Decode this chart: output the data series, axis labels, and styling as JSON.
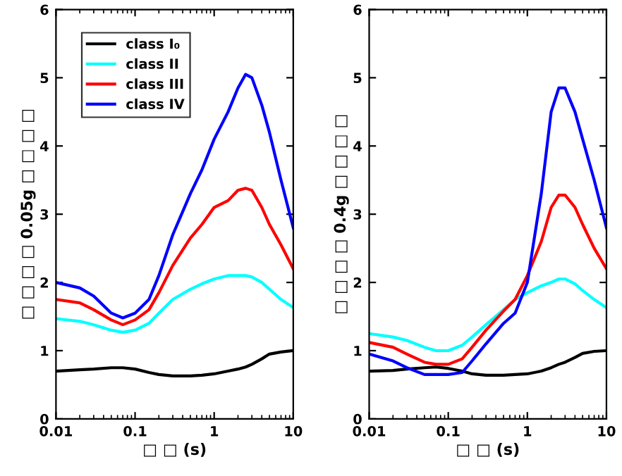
{
  "chart_data": [
    {
      "type": "line",
      "xlabel": "□ □ (s)",
      "ylabel": "□ □ □ □ 0.05g □ □ □ □",
      "log": "x",
      "xlim": [
        0.01,
        10
      ],
      "xticks": [
        0.01,
        0.1,
        1,
        10
      ],
      "ylim": [
        0,
        6
      ],
      "yticks": [
        0,
        1,
        2,
        3,
        4,
        5,
        6
      ],
      "legend": "top left",
      "grid": false,
      "x": [
        0.01,
        0.02,
        0.03,
        0.05,
        0.07,
        0.1,
        0.15,
        0.2,
        0.3,
        0.5,
        0.7,
        1,
        1.5,
        2,
        2.5,
        3,
        4,
        5,
        7,
        10
      ],
      "series": [
        {
          "name": "class I₀",
          "color": "#000000",
          "values": [
            0.7,
            0.72,
            0.73,
            0.75,
            0.75,
            0.73,
            0.68,
            0.65,
            0.63,
            0.63,
            0.64,
            0.66,
            0.7,
            0.73,
            0.76,
            0.8,
            0.88,
            0.95,
            0.98,
            1.0
          ]
        },
        {
          "name": "class II",
          "color": "#00ffff",
          "values": [
            1.47,
            1.43,
            1.38,
            1.3,
            1.27,
            1.3,
            1.4,
            1.55,
            1.75,
            1.9,
            1.98,
            2.05,
            2.1,
            2.1,
            2.1,
            2.08,
            2.0,
            1.9,
            1.75,
            1.63
          ]
        },
        {
          "name": "class III",
          "color": "#ff0000",
          "values": [
            1.75,
            1.7,
            1.6,
            1.45,
            1.38,
            1.45,
            1.6,
            1.85,
            2.25,
            2.65,
            2.85,
            3.1,
            3.2,
            3.35,
            3.38,
            3.35,
            3.1,
            2.85,
            2.55,
            2.2
          ]
        },
        {
          "name": "class IV",
          "color": "#0000ff",
          "values": [
            2.0,
            1.92,
            1.8,
            1.55,
            1.48,
            1.55,
            1.75,
            2.1,
            2.7,
            3.3,
            3.65,
            4.1,
            4.5,
            4.85,
            5.05,
            5.0,
            4.6,
            4.2,
            3.5,
            2.8
          ]
        }
      ]
    },
    {
      "type": "line",
      "xlabel": "□ □ (s)",
      "ylabel": "□ □ □ □ 0.4g □ □ □ □",
      "log": "x",
      "xlim": [
        0.01,
        10
      ],
      "xticks": [
        0.01,
        0.1,
        1,
        10
      ],
      "ylim": [
        0,
        6
      ],
      "yticks": [
        0,
        1,
        2,
        3,
        4,
        5,
        6
      ],
      "grid": false,
      "x": [
        0.01,
        0.02,
        0.03,
        0.05,
        0.07,
        0.1,
        0.15,
        0.2,
        0.3,
        0.5,
        0.7,
        1,
        1.5,
        2,
        2.5,
        3,
        4,
        5,
        7,
        10
      ],
      "series": [
        {
          "color": "#000000",
          "values": [
            0.7,
            0.71,
            0.73,
            0.75,
            0.76,
            0.74,
            0.7,
            0.66,
            0.64,
            0.64,
            0.65,
            0.66,
            0.7,
            0.75,
            0.8,
            0.83,
            0.9,
            0.96,
            0.99,
            1.0
          ]
        },
        {
          "color": "#00ffff",
          "values": [
            1.25,
            1.2,
            1.15,
            1.05,
            1.0,
            1.0,
            1.08,
            1.2,
            1.38,
            1.6,
            1.75,
            1.85,
            1.95,
            2.0,
            2.05,
            2.05,
            1.98,
            1.88,
            1.75,
            1.63
          ]
        },
        {
          "color": "#ff0000",
          "values": [
            1.12,
            1.05,
            0.95,
            0.83,
            0.8,
            0.8,
            0.88,
            1.05,
            1.3,
            1.58,
            1.75,
            2.1,
            2.6,
            3.1,
            3.28,
            3.28,
            3.1,
            2.85,
            2.5,
            2.2
          ]
        },
        {
          "color": "#0000ff",
          "values": [
            0.95,
            0.85,
            0.75,
            0.65,
            0.65,
            0.65,
            0.68,
            0.85,
            1.1,
            1.4,
            1.55,
            2.0,
            3.3,
            4.5,
            4.85,
            4.85,
            4.5,
            4.1,
            3.5,
            2.8
          ]
        }
      ]
    }
  ]
}
